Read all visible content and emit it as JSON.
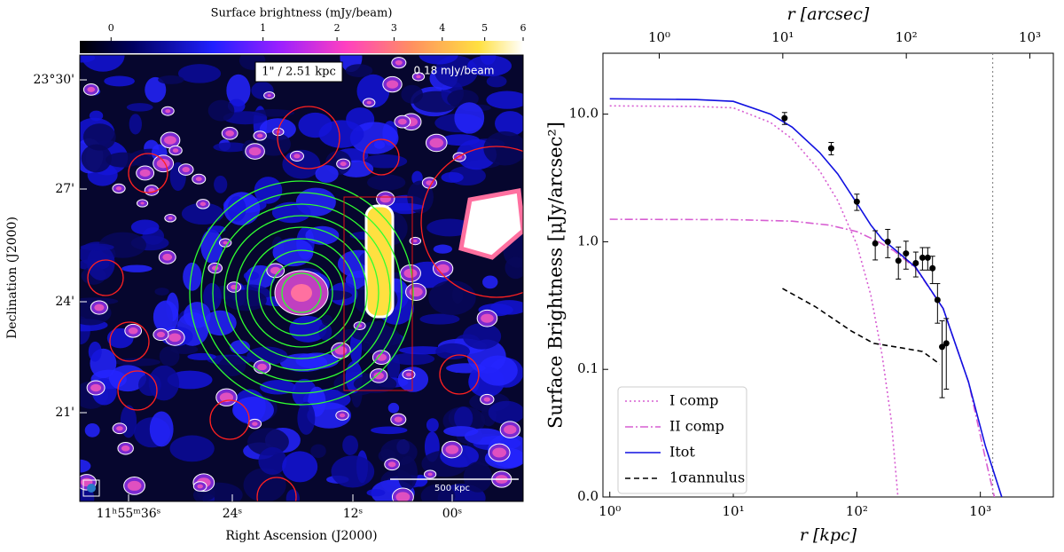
{
  "chart_data": [
    {
      "type": "image",
      "colorbar_label": "Surface brightness (mJy/beam)",
      "clim": [
        -0.03,
        6
      ],
      "cticks": [
        0,
        1,
        2,
        3,
        4,
        5,
        6
      ],
      "xlabel": "Right Ascension (J2000)",
      "ylabel": "Declination (J2000)",
      "xtick_labels": [
        "11ʰ55ᵐ36ˢ",
        "24ˢ",
        "12ˢ",
        "00ˢ"
      ],
      "ytick_labels": [
        "23°30'",
        "27'",
        "24'",
        "21'"
      ],
      "annotations": [
        "1\" / 2.51 kpc",
        "0.18 mJy/beam",
        "500 kpc"
      ]
    },
    {
      "type": "line",
      "xlabel": "r   [kpc]",
      "x2label": "r   [arcsec]",
      "ylabel": "Surface Brightness   [μJy/arcsec²]",
      "xscale": "log",
      "yscale": "log",
      "xlim": [
        0.88,
        3900
      ],
      "xticks": [
        {
          "value": 1,
          "label": "10⁰"
        },
        {
          "value": 10,
          "label": "10¹"
        },
        {
          "value": 100,
          "label": "10²"
        },
        {
          "value": 1000,
          "label": "10³"
        }
      ],
      "x2lim": [
        0.35,
        1550
      ],
      "x2ticks": [
        {
          "value": 1,
          "label": "10⁰"
        },
        {
          "value": 10,
          "label": "10¹"
        },
        {
          "value": 100,
          "label": "10²"
        },
        {
          "value": 1000,
          "label": "10³"
        }
      ],
      "ylim": [
        0.01,
        30
      ],
      "yticks": [
        {
          "value": 0.01,
          "label": "0.0"
        },
        0.1,
        {
          "value": 1,
          "label": "1.0"
        },
        {
          "value": 10,
          "label": "10.0"
        }
      ],
      "legend": "lower left",
      "vline": 1260,
      "series": [
        {
          "name": "I comp",
          "color": "#d75ed2",
          "style": "dotted",
          "x": [
            1,
            5,
            10,
            20,
            30,
            50,
            70,
            100,
            130,
            160,
            190,
            215
          ],
          "values": [
            11.6,
            11.5,
            11.2,
            8.6,
            6.4,
            3.6,
            2.1,
            0.95,
            0.38,
            0.13,
            0.04,
            0.01
          ]
        },
        {
          "name": "II comp",
          "color": "#d75ed2",
          "style": "dashdot",
          "x": [
            1,
            10,
            30,
            60,
            100,
            150,
            200,
            300,
            500,
            800,
            1100,
            1300
          ],
          "values": [
            1.5,
            1.49,
            1.45,
            1.35,
            1.2,
            1.0,
            0.85,
            0.62,
            0.3,
            0.08,
            0.02,
            0.01
          ]
        },
        {
          "name": "Itot",
          "color": "#1010e0",
          "style": "solid",
          "x": [
            1,
            5,
            10,
            20,
            30,
            50,
            70,
            100,
            130,
            160,
            200,
            300,
            500,
            800,
            1100,
            1490
          ],
          "values": [
            13.2,
            13.0,
            12.6,
            10.0,
            7.9,
            5.0,
            3.4,
            2.0,
            1.35,
            1.05,
            0.88,
            0.63,
            0.3,
            0.08,
            0.025,
            0.01
          ]
        },
        {
          "name": "1σannulus",
          "color": "#000000",
          "style": "dashed",
          "x": [
            25,
            46,
            90,
            137,
            207,
            340,
            470
          ],
          "values": [
            0.43,
            0.31,
            0.2,
            0.16,
            0.15,
            0.138,
            0.11
          ]
        }
      ],
      "points": {
        "color": "#000000",
        "x": [
          26,
          62,
          100,
          141,
          178,
          217,
          250,
          300,
          340,
          375,
          410,
          450,
          490,
          530
        ],
        "values": [
          9.3,
          5.4,
          2.06,
          0.97,
          1.0,
          0.71,
          0.81,
          0.68,
          0.75,
          0.75,
          0.62,
          0.35,
          0.15,
          0.16
        ],
        "errors": [
          1.0,
          0.6,
          0.3,
          0.25,
          0.25,
          0.2,
          0.2,
          0.15,
          0.15,
          0.15,
          0.15,
          0.12,
          0.09,
          0.09
        ]
      }
    }
  ]
}
